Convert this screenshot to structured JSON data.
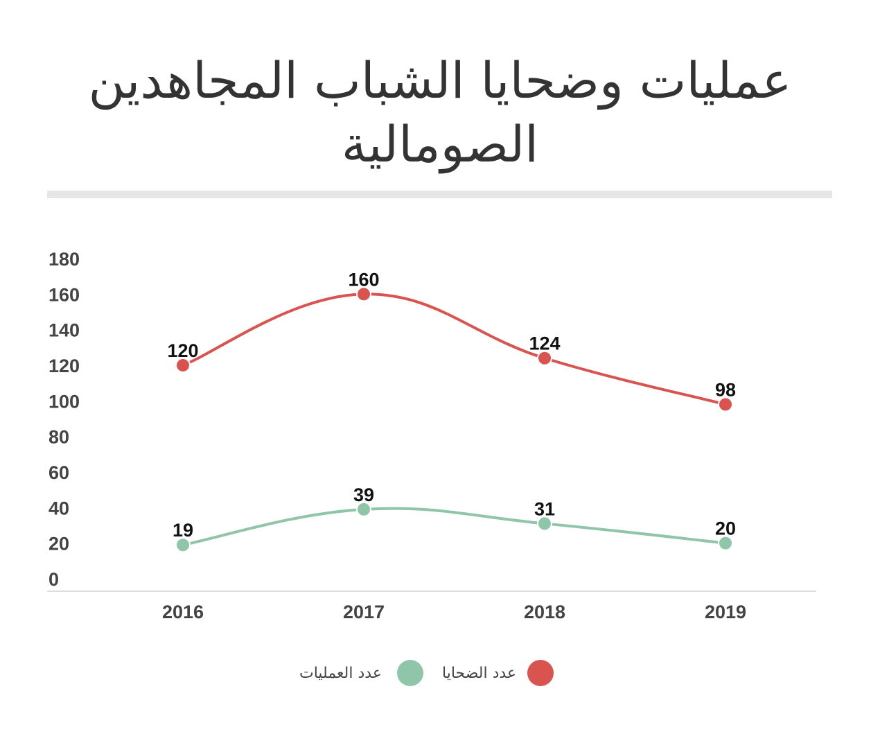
{
  "title": "عمليات وضحايا الشباب المجاهدين الصومالية",
  "chart_data": {
    "type": "line",
    "categories": [
      "2016",
      "2017",
      "2018",
      "2019"
    ],
    "series": [
      {
        "name": "عدد الضحايا",
        "values": [
          120,
          160,
          124,
          98
        ],
        "color": "#d9534f"
      },
      {
        "name": "عدد العمليات",
        "values": [
          19,
          39,
          31,
          20
        ],
        "color": "#8fc5a8"
      }
    ],
    "ylim": [
      0,
      180
    ],
    "yticks": [
      "0",
      "20",
      "40",
      "60",
      "80",
      "100",
      "120",
      "140",
      "160",
      "180"
    ],
    "grid": false,
    "legend_position": "bottom"
  }
}
